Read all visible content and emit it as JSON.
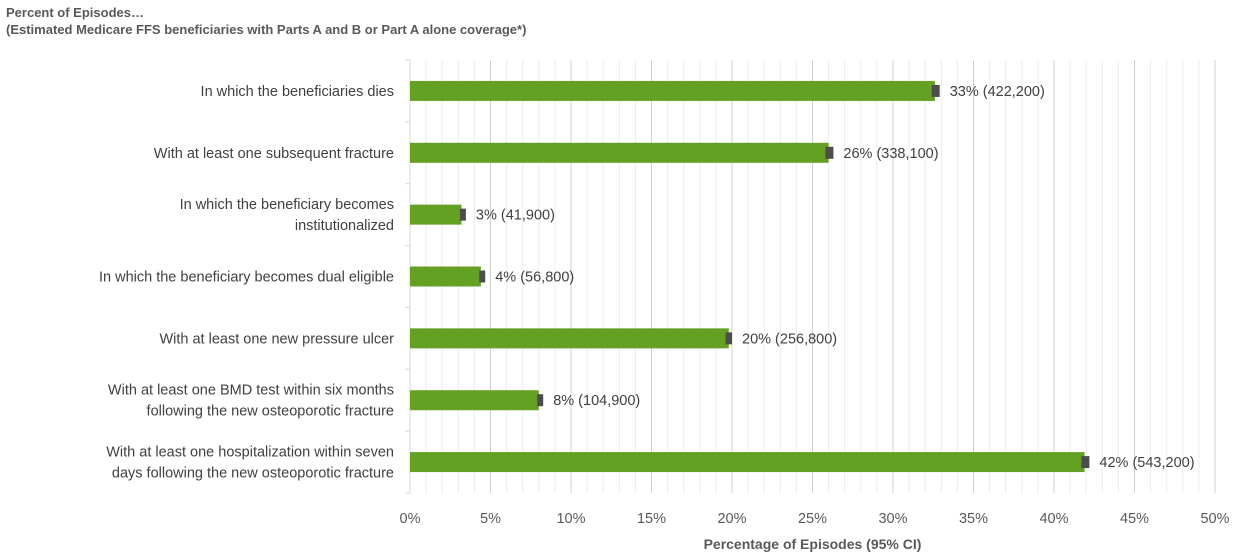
{
  "chart_data": {
    "type": "bar",
    "orientation": "horizontal",
    "title": "Percent of Episodes…",
    "subtitle": "(Estimated Medicare FFS beneficiaries with Parts A and B or Part A alone coverage*)",
    "xlabel": "Percentage of Episodes (95% CI)",
    "xlim": [
      0,
      50
    ],
    "x_ticks": [
      "0%",
      "5%",
      "10%",
      "15%",
      "20%",
      "25%",
      "30%",
      "35%",
      "40%",
      "45%",
      "50%"
    ],
    "grid": true,
    "bar_color": "#64a123",
    "error_color": "#4d4d4d",
    "categories": [
      [
        "In which the beneficiaries dies"
      ],
      [
        "With at least one subsequent fracture"
      ],
      [
        "In which the beneficiary becomes",
        "institutionalized"
      ],
      [
        "In which the beneficiary becomes dual eligible"
      ],
      [
        "With at least one new pressure ulcer"
      ],
      [
        "With at least one BMD test within six months",
        "following the new osteoporotic fracture"
      ],
      [
        "With at least one hospitalization within seven",
        "days following the new osteoporotic fracture"
      ]
    ],
    "values": [
      32.6,
      26.0,
      3.2,
      4.4,
      19.8,
      8.0,
      41.9
    ],
    "ci_low": [
      32.4,
      25.8,
      3.1,
      4.3,
      19.6,
      7.9,
      41.7
    ],
    "ci_high": [
      32.9,
      26.3,
      3.3,
      4.6,
      20.0,
      8.2,
      42.2
    ],
    "data_labels": [
      "33% (422,200)",
      "26% (338,100)",
      "3% (41,900)",
      "4% (56,800)",
      "20% (256,800)",
      "8% (104,900)",
      "42% (543,200)"
    ]
  }
}
